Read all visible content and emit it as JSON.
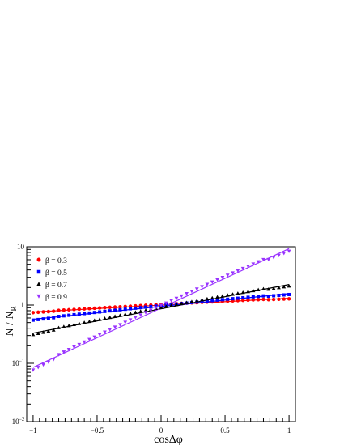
{
  "chart_data": {
    "type": "scatter",
    "title": "",
    "xlabel": "cosΔφ",
    "ylabel": "N / N",
    "ylabel_sub": "R",
    "xlim": [
      -1.05,
      1.05
    ],
    "ylim_log10": [
      -2,
      1
    ],
    "yscale": "log",
    "grid": false,
    "legend": "top-left",
    "x_ticks": [
      {
        "v": -1,
        "label": "−1"
      },
      {
        "v": -0.5,
        "label": "−0.5"
      },
      {
        "v": 0,
        "label": "0"
      },
      {
        "v": 0.5,
        "label": "0.5"
      },
      {
        "v": 1,
        "label": "1"
      }
    ],
    "y_ticks": [
      {
        "exp": -2,
        "base": "10",
        "sup": "−2"
      },
      {
        "exp": -1,
        "base": "10",
        "sup": "−1"
      },
      {
        "exp": 0,
        "base": "1",
        "sup": ""
      },
      {
        "exp": 1,
        "base": "10",
        "sup": ""
      }
    ],
    "series": [
      {
        "name": "β = 0.3",
        "color": "#ff0000",
        "marker": "circle",
        "beta": 0.3,
        "fit": [
          0.76,
          1.31
        ],
        "scatter_amp": 0.02
      },
      {
        "name": "β = 0.5",
        "color": "#0000ff",
        "marker": "square",
        "beta": 0.5,
        "fit": [
          0.57,
          1.57
        ],
        "scatter_amp": 0.03
      },
      {
        "name": "β = 0.7",
        "color": "#000000",
        "marker": "triangle-up",
        "beta": 0.7,
        "fit": [
          0.33,
          2.25
        ],
        "scatter_amp": 0.05
      },
      {
        "name": "β = 0.9",
        "color": "#9933ff",
        "marker": "triangle-down",
        "beta": 0.9,
        "fit": [
          0.085,
          9.3
        ],
        "scatter_amp": 0.09
      }
    ]
  }
}
